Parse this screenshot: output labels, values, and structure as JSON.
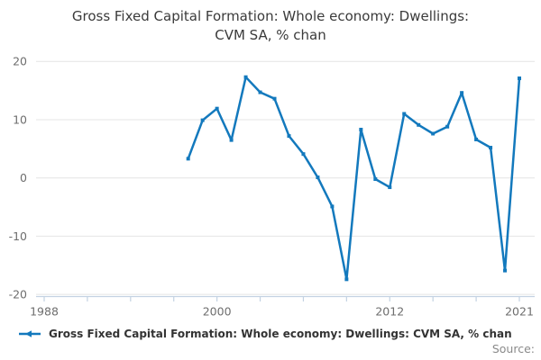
{
  "header": {
    "title_line1": "Gross Fixed Capital Formation: Whole economy: Dwellings:",
    "title_line2": "CVM SA, % chan"
  },
  "legend": {
    "label": "Gross Fixed Capital Formation: Whole economy: Dwellings: CVM SA, % chan"
  },
  "footer": {
    "source_label": "Source:"
  },
  "colors": {
    "line": "#1379bd",
    "grid": "#e4e4e4",
    "axis": "#c3d2e2",
    "tick_text": "#6e6e6e",
    "title_text": "#3a3a3a",
    "legend_text": "#333333",
    "source_text": "#8a8a8a"
  },
  "chart_data": {
    "type": "line",
    "title": "Gross Fixed Capital Formation: Whole economy: Dwellings: CVM SA, % chan",
    "xlabel": "",
    "ylabel": "",
    "xlim": [
      1988,
      2021
    ],
    "ylim": [
      -20,
      20
    ],
    "yticks": [
      20,
      10,
      0,
      -10,
      -20
    ],
    "xticks": [
      1988,
      1991,
      1994,
      1997,
      2000,
      2003,
      2006,
      2009,
      2012,
      2015,
      2018,
      2021
    ],
    "xtick_labels_visible": [
      "1988",
      "2000",
      "2012",
      "2021"
    ],
    "grid": "horizontal",
    "legend_position": "bottom",
    "marker": "square",
    "series": [
      {
        "name": "Gross Fixed Capital Formation: Whole economy: Dwellings: CVM SA, % chan",
        "x": [
          1998,
          1999,
          2000,
          2001,
          2002,
          2003,
          2004,
          2005,
          2006,
          2007,
          2008,
          2009,
          2010,
          2011,
          2012,
          2013,
          2014,
          2015,
          2016,
          2017,
          2018,
          2019,
          2020,
          2021
        ],
        "values": [
          3.3,
          9.9,
          11.9,
          6.5,
          17.3,
          14.7,
          13.6,
          7.2,
          4.1,
          0.1,
          -4.9,
          -17.4,
          8.3,
          -0.2,
          -1.6,
          11.0,
          9.1,
          7.6,
          8.8,
          14.6,
          6.6,
          5.2,
          -15.9,
          17.1
        ]
      }
    ]
  }
}
